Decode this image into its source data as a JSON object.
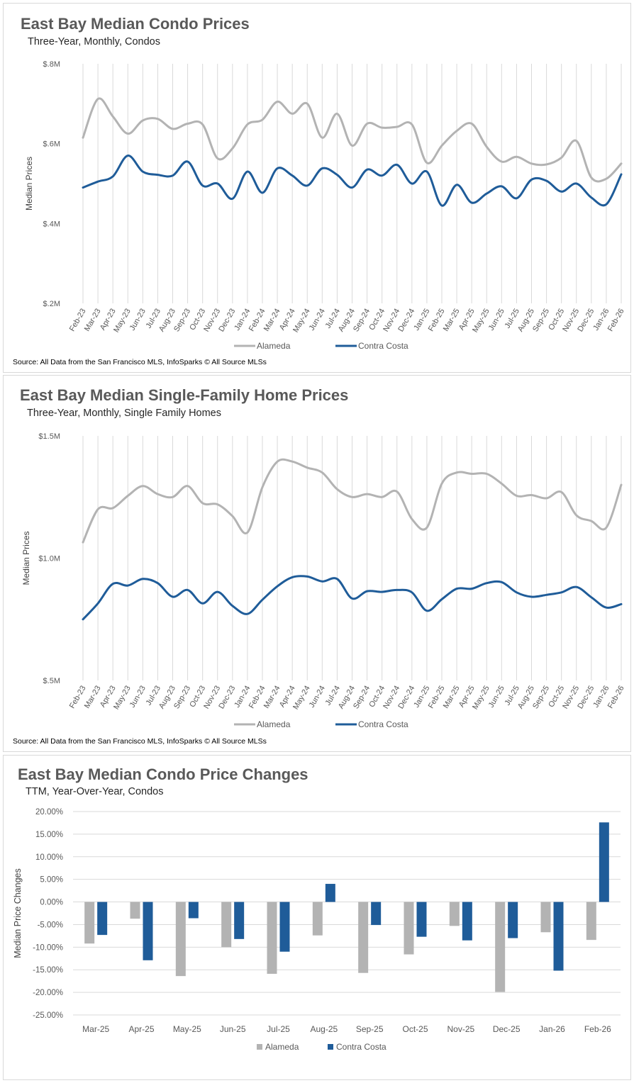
{
  "chart_data": [
    {
      "type": "line",
      "title": "East Bay Median Condo Prices",
      "subtitle": "Three-Year, Monthly, Condos",
      "xlabel": "",
      "ylabel": "Median Prices",
      "ylim": [
        0.2,
        0.8
      ],
      "yticks": [
        0.2,
        0.4,
        0.6,
        0.8
      ],
      "ytick_labels": [
        "$.2M",
        "$.4M",
        "$.6M",
        "$.8M"
      ],
      "grid": "vertical",
      "legend": "bottom",
      "categories": [
        "Feb-23",
        "Mar-23",
        "Apr-23",
        "May-23",
        "Jun-23",
        "Jul-23",
        "Aug-23",
        "Sep-23",
        "Oct-23",
        "Nov-23",
        "Dec-23",
        "Jan-24",
        "Feb-24",
        "Mar-24",
        "Apr-24",
        "May-24",
        "Jun-24",
        "Jul-24",
        "Aug-24",
        "Sep-24",
        "Oct-24",
        "Nov-24",
        "Dec-24",
        "Jan-25",
        "Feb-25",
        "Mar-25",
        "Apr-25",
        "May-25",
        "Jun-25",
        "Jul-25",
        "Aug-25",
        "Sep-25",
        "Oct-25",
        "Nov-25",
        "Dec-25",
        "Jan-26",
        "Feb-26"
      ],
      "series": [
        {
          "name": "Alameda",
          "color": "#b3b3b3",
          "values": [
            0.615,
            0.712,
            0.668,
            0.625,
            0.658,
            0.662,
            0.637,
            0.65,
            0.648,
            0.563,
            0.588,
            0.648,
            0.66,
            0.705,
            0.675,
            0.7,
            0.615,
            0.675,
            0.595,
            0.65,
            0.64,
            0.642,
            0.648,
            0.552,
            0.595,
            0.632,
            0.65,
            0.592,
            0.555,
            0.567,
            0.55,
            0.548,
            0.565,
            0.607,
            0.515,
            0.512,
            0.55
          ]
        },
        {
          "name": "Contra Costa",
          "color": "#1f5c99",
          "values": [
            0.49,
            0.505,
            0.518,
            0.57,
            0.53,
            0.522,
            0.52,
            0.555,
            0.495,
            0.5,
            0.462,
            0.53,
            0.477,
            0.538,
            0.52,
            0.495,
            0.538,
            0.522,
            0.49,
            0.535,
            0.52,
            0.547,
            0.5,
            0.53,
            0.445,
            0.497,
            0.452,
            0.475,
            0.493,
            0.463,
            0.51,
            0.507,
            0.48,
            0.5,
            0.465,
            0.448,
            0.523
          ]
        }
      ]
    },
    {
      "type": "line",
      "title": "East Bay Median Single-Family Home Prices",
      "subtitle": "Three-Year, Monthly, Single Family Homes",
      "xlabel": "",
      "ylabel": "Median Prices",
      "ylim": [
        0.5,
        1.5
      ],
      "yticks": [
        0.5,
        1.0,
        1.5
      ],
      "ytick_labels": [
        "$.5M",
        "$1.0M",
        "$1.5M"
      ],
      "grid": "vertical",
      "legend": "bottom",
      "categories": [
        "Feb-23",
        "Mar-23",
        "Apr-23",
        "May-23",
        "Jun-23",
        "Jul-23",
        "Aug-23",
        "Sep-23",
        "Oct-23",
        "Nov-23",
        "Dec-23",
        "Jan-24",
        "Feb-24",
        "Mar-24",
        "Apr-24",
        "May-24",
        "Jun-24",
        "Jul-24",
        "Aug-24",
        "Sep-24",
        "Oct-24",
        "Nov-24",
        "Dec-24",
        "Jan-25",
        "Feb-25",
        "Mar-25",
        "Apr-25",
        "May-25",
        "Jun-25",
        "Jul-25",
        "Aug-25",
        "Sep-25",
        "Oct-25",
        "Nov-25",
        "Dec-25",
        "Jan-26",
        "Feb-26"
      ],
      "series": [
        {
          "name": "Alameda",
          "color": "#b3b3b3",
          "values": [
            1.065,
            1.2,
            1.205,
            1.255,
            1.295,
            1.262,
            1.25,
            1.295,
            1.225,
            1.22,
            1.172,
            1.105,
            1.29,
            1.395,
            1.395,
            1.37,
            1.35,
            1.282,
            1.25,
            1.262,
            1.25,
            1.272,
            1.16,
            1.125,
            1.305,
            1.35,
            1.345,
            1.345,
            1.305,
            1.255,
            1.258,
            1.245,
            1.27,
            1.175,
            1.152,
            1.125,
            1.3
          ]
        },
        {
          "name": "Contra Costa",
          "color": "#1f5c99",
          "values": [
            0.75,
            0.815,
            0.895,
            0.888,
            0.915,
            0.898,
            0.842,
            0.87,
            0.815,
            0.862,
            0.805,
            0.772,
            0.83,
            0.885,
            0.922,
            0.925,
            0.905,
            0.915,
            0.835,
            0.865,
            0.862,
            0.87,
            0.86,
            0.785,
            0.832,
            0.875,
            0.875,
            0.898,
            0.902,
            0.86,
            0.842,
            0.85,
            0.86,
            0.882,
            0.84,
            0.798,
            0.812
          ]
        }
      ]
    },
    {
      "type": "bar",
      "title": "East Bay Median Condo Price Changes",
      "subtitle": "TTM, Year-Over-Year, Condos",
      "xlabel": "",
      "ylabel": "Median Price Changes",
      "ylim": [
        -25,
        20
      ],
      "yticks": [
        20,
        15,
        10,
        5,
        0,
        -5,
        -10,
        -15,
        -20,
        -25
      ],
      "ytick_labels": [
        "20.00%",
        "15.00%",
        "10.00%",
        "5.00%",
        "0.00%",
        "-5.00%",
        "-10.00%",
        "-15.00%",
        "-20.00%",
        "-25.00%"
      ],
      "grid": "horizontal",
      "legend": "bottom",
      "categories": [
        "Mar-25",
        "Apr-25",
        "May-25",
        "Jun-25",
        "Jul-25",
        "Aug-25",
        "Sep-25",
        "Oct-25",
        "Nov-25",
        "Dec-25",
        "Jan-26",
        "Feb-26"
      ],
      "series": [
        {
          "name": "Alameda",
          "color": "#b3b3b3",
          "values": [
            -9.2,
            -3.7,
            -16.4,
            -10.0,
            -15.9,
            -7.4,
            -15.7,
            -11.6,
            -5.3,
            -19.9,
            -6.7,
            -8.4
          ]
        },
        {
          "name": "Contra Costa",
          "color": "#1f5c99",
          "values": [
            -7.3,
            -12.9,
            -3.6,
            -8.2,
            -11.0,
            4.0,
            -5.1,
            -7.7,
            -8.5,
            -8.0,
            -15.2,
            17.6
          ]
        }
      ]
    }
  ],
  "source_text": "Source: All Data from the San Francisco MLS, InfoSparks © All Source MLSs"
}
